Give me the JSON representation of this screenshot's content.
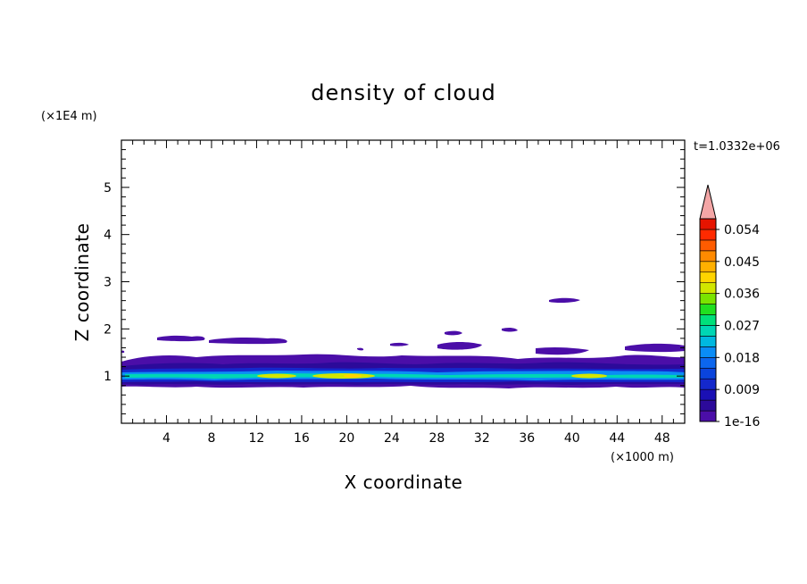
{
  "chart_data": {
    "type": "heatmap",
    "title": "density of cloud",
    "xlabel": "X coordinate",
    "ylabel": "Z coordinate",
    "x_unit": "(×1000 m)",
    "y_unit": "(×1E4 m)",
    "time_label": "t=1.0332e+06",
    "xlim": [
      0,
      50
    ],
    "ylim": [
      0,
      6
    ],
    "xticks": [
      "4",
      "8",
      "12",
      "16",
      "20",
      "24",
      "28",
      "32",
      "36",
      "40",
      "44",
      "48"
    ],
    "yticks": [
      "1",
      "2",
      "3",
      "4",
      "5"
    ],
    "colorbar": {
      "labels": [
        "1e-16",
        "0.009",
        "0.018",
        "0.027",
        "0.036",
        "0.045",
        "0.054"
      ],
      "colors": [
        "#4b0ea8",
        "#2c0a9a",
        "#1a10b4",
        "#1428cc",
        "#0a44dc",
        "#0c66ee",
        "#0a8cf6",
        "#00b8e0",
        "#00d6b4",
        "#00e07a",
        "#20e020",
        "#7ae400",
        "#d2e600",
        "#ffd400",
        "#ffb000",
        "#ff8a00",
        "#ff5c00",
        "#ff2a00",
        "#e61400"
      ],
      "extend_color": "#f4a6a6"
    },
    "cloud_regions": [
      {
        "x": [
          0,
          50
        ],
        "z": [
          0.85,
          1.35
        ],
        "level": "1e-16 – 0.009"
      },
      {
        "x": [
          0,
          50
        ],
        "z": [
          0.9,
          1.1
        ],
        "level": "0.018 – 0.036"
      },
      {
        "x": [
          13,
          23
        ],
        "z": [
          0.95,
          1.05
        ],
        "level": "0.036 – 0.045"
      },
      {
        "x": [
          40,
          43
        ],
        "z": [
          0.95,
          1.05
        ],
        "level": "0.036 – 0.045"
      },
      {
        "x": [
          3,
          16
        ],
        "z": [
          1.7,
          1.85
        ],
        "level": "1e-16 – 0.009"
      },
      {
        "x": [
          29,
          32
        ],
        "z": [
          1.75,
          1.95
        ],
        "level": "1e-16 – 0.009"
      },
      {
        "x": [
          39,
          42
        ],
        "z": [
          2.5,
          2.65
        ],
        "level": "1e-16 – 0.009"
      }
    ]
  }
}
